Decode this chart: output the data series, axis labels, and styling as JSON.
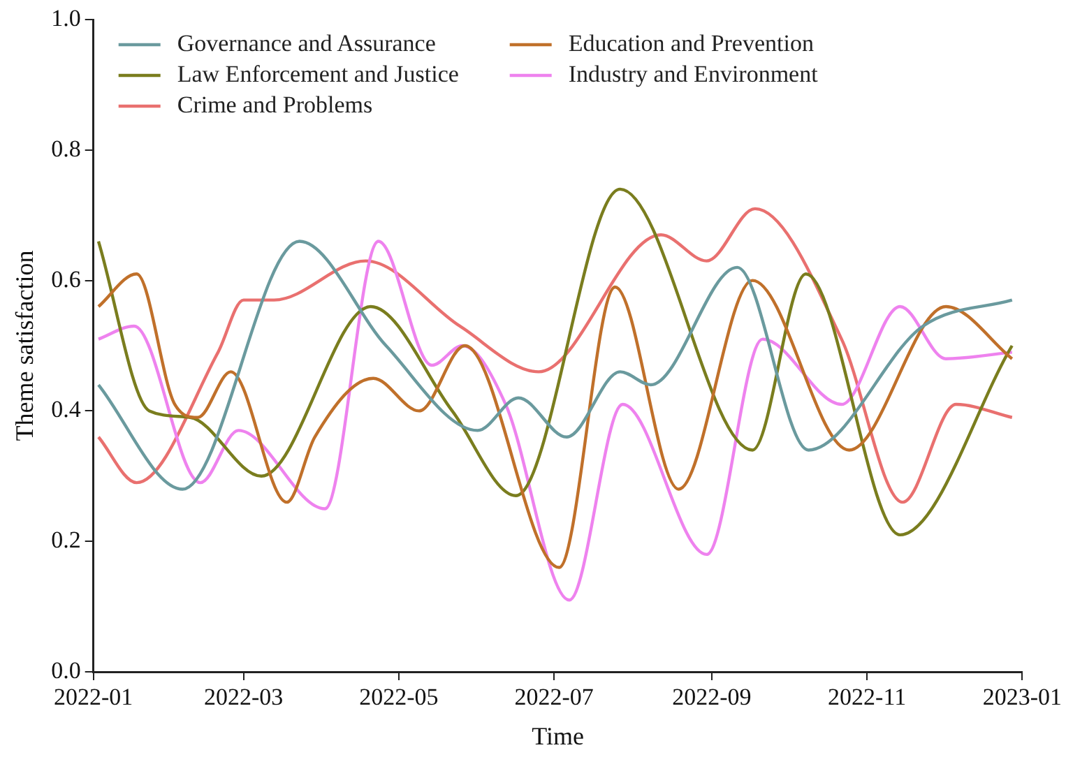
{
  "chart_data": {
    "type": "line",
    "xlabel": "Time",
    "ylabel": "Theme satisfaction",
    "xlim": [
      "2022-01",
      "2023-01"
    ],
    "xticks": [
      "2022-01",
      "2022-03",
      "2022-05",
      "2022-07",
      "2022-09",
      "2022-11",
      "2023-01"
    ],
    "ylim": [
      0,
      1
    ],
    "yticks": [
      {
        "value": 0,
        "label": "0.0"
      },
      {
        "value": 0.2,
        "label": "0.2"
      },
      {
        "value": 0.4,
        "label": "0.4"
      },
      {
        "value": 0.6,
        "label": "0.6"
      },
      {
        "value": 0.8,
        "label": "0.8"
      },
      {
        "value": 1,
        "label": "1.0"
      }
    ],
    "grid": false,
    "legend": "top left",
    "marker": "none",
    "line_style": "solid",
    "series": [
      {
        "name": "Governance and Assurance",
        "color": "#6a9a9e",
        "x": [
          "2022-01-03",
          "2022-02-05",
          "2022-03-23",
          "2022-04-26",
          "2022-06-01",
          "2022-06-17",
          "2022-07-06",
          "2022-07-27",
          "2022-08-08",
          "2022-09-11",
          "2022-10-09",
          "2022-11-23",
          "2022-12-28"
        ],
        "values": [
          0.44,
          0.28,
          0.66,
          0.5,
          0.37,
          0.42,
          0.36,
          0.46,
          0.44,
          0.62,
          0.34,
          0.53,
          0.57
        ]
      },
      {
        "name": "Education and Prevention",
        "color": "#c0702a",
        "x": [
          "2022-01-03",
          "2022-01-18",
          "2022-02-02",
          "2022-02-11",
          "2022-02-24",
          "2022-03-18",
          "2022-03-29",
          "2022-04-21",
          "2022-05-09",
          "2022-05-27",
          "2022-07-03",
          "2022-07-25",
          "2022-08-19",
          "2022-09-17",
          "2022-10-25",
          "2022-12-02",
          "2022-12-28"
        ],
        "values": [
          0.56,
          0.61,
          0.41,
          0.39,
          0.46,
          0.26,
          0.36,
          0.45,
          0.4,
          0.5,
          0.16,
          0.59,
          0.28,
          0.6,
          0.34,
          0.56,
          0.48
        ]
      },
      {
        "name": "Law Enforcement and Justice",
        "color": "#7a7d1e",
        "x": [
          "2022-01-03",
          "2022-01-23",
          "2022-02-08",
          "2022-03-08",
          "2022-04-20",
          "2022-05-22",
          "2022-06-16",
          "2022-07-27",
          "2022-09-17",
          "2022-10-08",
          "2022-11-14",
          "2022-12-28"
        ],
        "values": [
          0.66,
          0.4,
          0.39,
          0.3,
          0.56,
          0.4,
          0.27,
          0.74,
          0.34,
          0.61,
          0.21,
          0.5
        ]
      },
      {
        "name": "Industry and Environment",
        "color": "#ee82ee",
        "x": [
          "2022-01-03",
          "2022-01-17",
          "2022-02-12",
          "2022-02-27",
          "2022-04-02",
          "2022-04-23",
          "2022-05-14",
          "2022-05-26",
          "2022-06-12",
          "2022-07-07",
          "2022-07-28",
          "2022-08-30",
          "2022-09-21",
          "2022-10-22",
          "2022-11-14",
          "2022-12-02",
          "2022-12-28"
        ],
        "values": [
          0.51,
          0.53,
          0.29,
          0.37,
          0.25,
          0.66,
          0.47,
          0.5,
          0.41,
          0.11,
          0.41,
          0.18,
          0.51,
          0.41,
          0.56,
          0.48,
          0.49
        ]
      },
      {
        "name": "Crime and Problems",
        "color": "#e9706f",
        "x": [
          "2022-01-03",
          "2022-01-18",
          "2022-02-19",
          "2022-03-01",
          "2022-03-13",
          "2022-04-18",
          "2022-05-25",
          "2022-06-25",
          "2022-08-12",
          "2022-08-30",
          "2022-09-18",
          "2022-10-22",
          "2022-11-15",
          "2022-12-06",
          "2022-12-28"
        ],
        "values": [
          0.36,
          0.29,
          0.49,
          0.57,
          0.57,
          0.63,
          0.53,
          0.46,
          0.67,
          0.63,
          0.71,
          0.51,
          0.26,
          0.41,
          0.39
        ]
      }
    ]
  }
}
